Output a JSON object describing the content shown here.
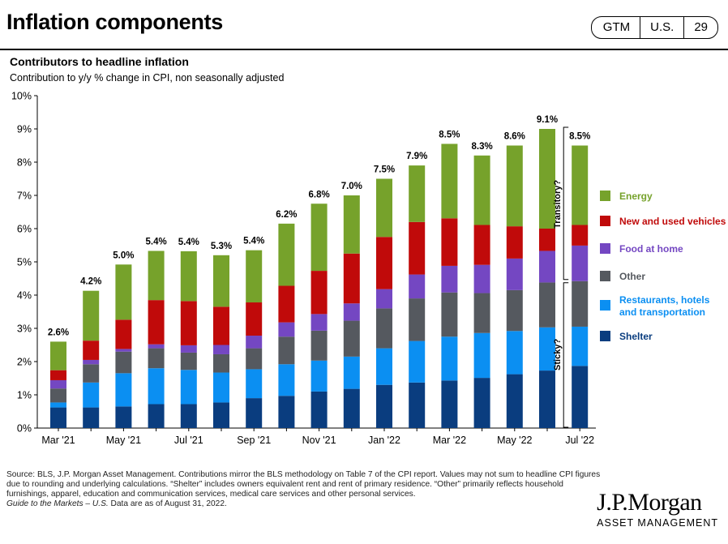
{
  "header": {
    "title": "Inflation components",
    "badges": [
      "GTM",
      "U.S.",
      "29"
    ]
  },
  "chart_data": {
    "type": "bar",
    "stacked": true,
    "title": "Contributors to headline inflation",
    "subtitle": "Contribution to y/y % change in CPI, non seasonally adjusted",
    "xlabel": "",
    "ylabel": "",
    "ylim": [
      0,
      10
    ],
    "yticks": [
      "0%",
      "1%",
      "2%",
      "3%",
      "4%",
      "5%",
      "6%",
      "7%",
      "8%",
      "9%",
      "10%"
    ],
    "categories": [
      "Mar '21",
      "Apr '21",
      "May '21",
      "Jun '21",
      "Jul '21",
      "Aug '21",
      "Sep '21",
      "Oct '21",
      "Nov '21",
      "Dec '21",
      "Jan '22",
      "Feb '22",
      "Mar '22",
      "Apr '22",
      "May '22",
      "Jun '22",
      "Jul '22"
    ],
    "xtick_labels": [
      "Mar '21",
      "",
      "May '21",
      "",
      "Jul '21",
      "",
      "Sep '21",
      "",
      "Nov '21",
      "",
      "Jan '22",
      "",
      "Mar '22",
      "",
      "May '22",
      "",
      "Jul '22"
    ],
    "totals": [
      "2.6%",
      "4.2%",
      "5.0%",
      "5.4%",
      "5.4%",
      "5.3%",
      "5.4%",
      "6.2%",
      "6.8%",
      "7.0%",
      "7.5%",
      "7.9%",
      "8.5%",
      "8.3%",
      "8.6%",
      "9.1%",
      "8.5%"
    ],
    "series": [
      {
        "name": "Shelter",
        "color": "#0a3d7f",
        "values": [
          0.62,
          0.62,
          0.65,
          0.72,
          0.72,
          0.77,
          0.9,
          0.97,
          1.1,
          1.18,
          1.3,
          1.37,
          1.43,
          1.51,
          1.62,
          1.73,
          1.87
        ]
      },
      {
        "name": "Restaurants, hotels and transportation",
        "color": "#0b8ff2",
        "values": [
          0.15,
          0.75,
          1.0,
          1.08,
          1.03,
          0.9,
          0.87,
          0.95,
          0.93,
          0.97,
          1.1,
          1.25,
          1.32,
          1.35,
          1.3,
          1.3,
          1.18
        ]
      },
      {
        "name": "Other",
        "color": "#55595f",
        "values": [
          0.42,
          0.55,
          0.65,
          0.6,
          0.52,
          0.55,
          0.63,
          0.83,
          0.9,
          1.08,
          1.2,
          1.28,
          1.33,
          1.2,
          1.23,
          1.35,
          1.37
        ]
      },
      {
        "name": "Food  at home",
        "color": "#7447c2",
        "values": [
          0.25,
          0.13,
          0.08,
          0.12,
          0.22,
          0.28,
          0.38,
          0.43,
          0.5,
          0.52,
          0.58,
          0.72,
          0.8,
          0.85,
          0.95,
          0.95,
          1.07
        ]
      },
      {
        "name": "New and used vehicles",
        "color": "#c00a0a",
        "values": [
          0.3,
          0.58,
          0.88,
          1.33,
          1.33,
          1.15,
          1.0,
          1.1,
          1.3,
          1.5,
          1.57,
          1.58,
          1.43,
          1.2,
          0.97,
          0.67,
          0.62
        ]
      },
      {
        "name": "Energy",
        "color": "#76a22b",
        "values": [
          0.86,
          1.5,
          1.66,
          1.48,
          1.5,
          1.55,
          1.57,
          1.87,
          2.02,
          1.75,
          1.75,
          1.7,
          2.24,
          2.09,
          2.43,
          3.0,
          2.39
        ]
      }
    ],
    "legend": {
      "placement": "right",
      "order": [
        "Energy",
        "New and used vehicles",
        "Food  at home",
        "Other",
        "Restaurants, hotels and transportation",
        "Shelter"
      ]
    },
    "annotations": [
      {
        "text": "Transitory?",
        "spans": [
          "Energy",
          "New and used vehicles",
          "Food  at home"
        ]
      },
      {
        "text": "Sticky?",
        "spans": [
          "Shelter",
          "Restaurants, hotels and transportation",
          "Other"
        ]
      }
    ],
    "grid": false
  },
  "legend_labels": {
    "energy": "Energy",
    "vehicles": "New and used vehicles",
    "food": "Food  at home",
    "other": "Other",
    "restaurants_1": "Restaurants, hotels",
    "restaurants_2": "and transportation",
    "shelter": "Shelter"
  },
  "footnote": {
    "lines": [
      "Source: BLS, J.P. Morgan Asset Management. Contributions mirror the BLS methodology on Table 7 of the CPI report. Values may not sum to headline CPI figures due to rounding and underlying calculations. “Shelter” includes owners equivalent rent and rent of primary residence. “Other” primarily reflects household furnishings, apparel, education and communication services, medical care services and other personal services."
    ],
    "guide_italic": "Guide to the Markets – U.S.",
    "guide_rest": " Data are as of August 31, 2022."
  },
  "logo": {
    "main": "J.P.Morgan",
    "sub": "ASSET MANAGEMENT"
  }
}
